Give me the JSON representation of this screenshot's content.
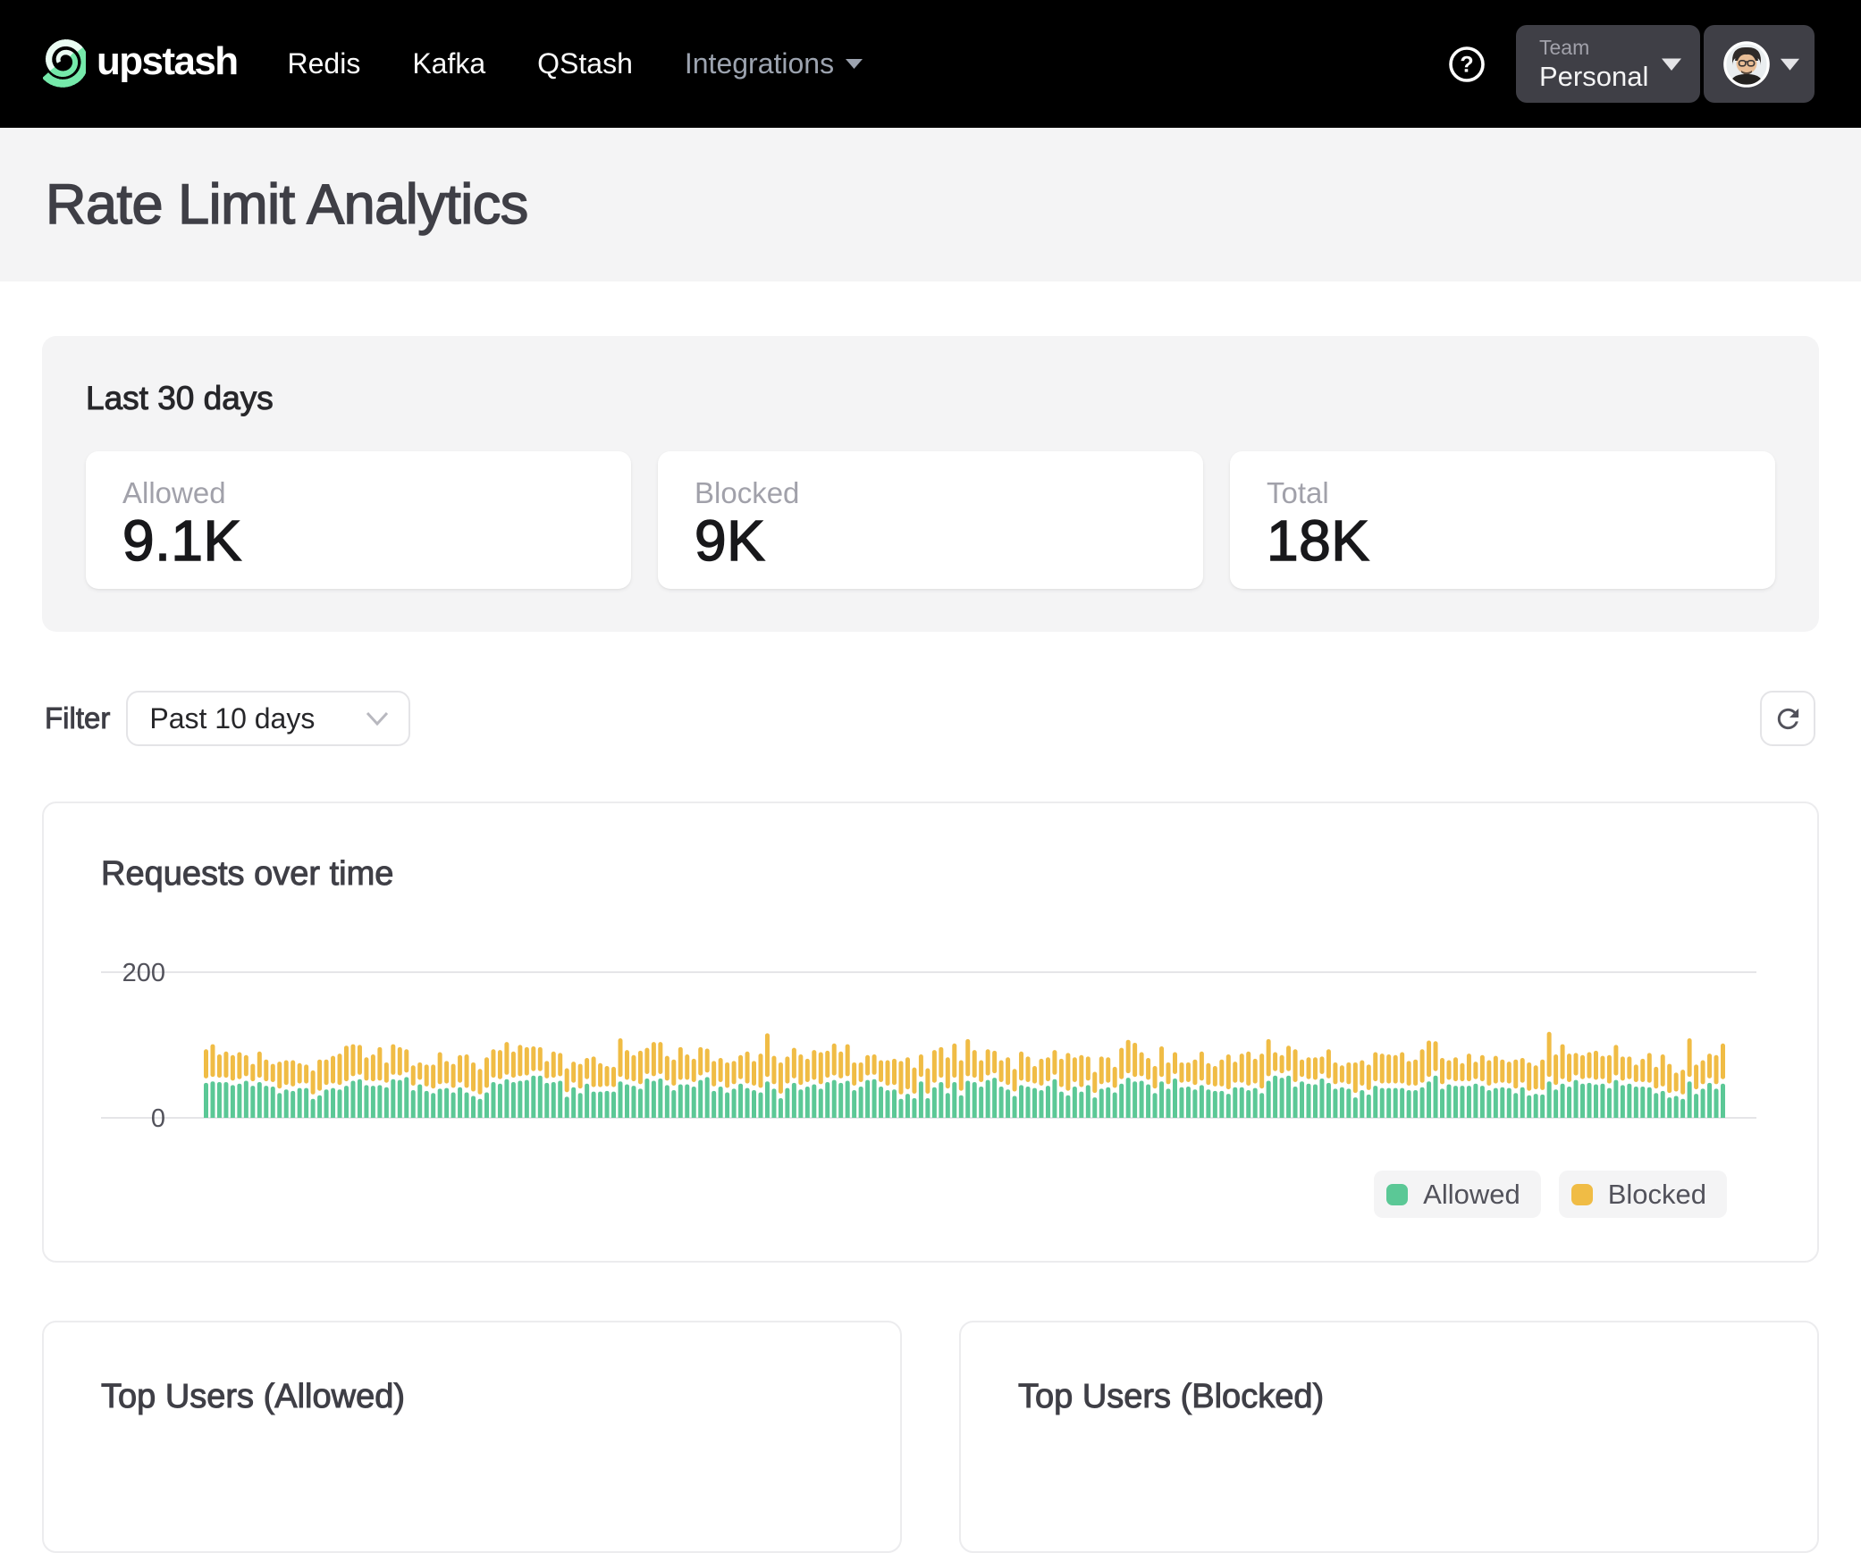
{
  "nav": {
    "brand": "upstash",
    "links": [
      {
        "label": "Redis"
      },
      {
        "label": "Kafka"
      },
      {
        "label": "QStash"
      }
    ],
    "integrations_label": "Integrations",
    "team_switcher": {
      "label": "Team",
      "value": "Personal"
    }
  },
  "page": {
    "title": "Rate Limit Analytics"
  },
  "summary": {
    "title": "Last 30 days",
    "stats": [
      {
        "label": "Allowed",
        "value": "9.1K"
      },
      {
        "label": "Blocked",
        "value": "9K"
      },
      {
        "label": "Total",
        "value": "18K"
      }
    ]
  },
  "filter": {
    "label": "Filter",
    "value": "Past 10 days"
  },
  "chart_card": {
    "title": "Requests over time"
  },
  "chart_data": {
    "type": "bar",
    "stacked": true,
    "title": "Requests over time",
    "xlabel": "",
    "ylabel": "",
    "ylim": [
      0,
      200
    ],
    "yticks": [
      0,
      200
    ],
    "grid": true,
    "legend_position": "bottom-right",
    "legend": [
      "Allowed",
      "Blocked"
    ],
    "colors": {
      "Allowed": "#5bc896",
      "Blocked": "#f0bc45"
    },
    "series": [
      {
        "name": "Allowed",
        "values": [
          48,
          50,
          49,
          49,
          45,
          47,
          51,
          44,
          49,
          44,
          43,
          34,
          39,
          37,
          41,
          41,
          26,
          31,
          39,
          41,
          39,
          44,
          51,
          53,
          45,
          44,
          45,
          42,
          53,
          52,
          56,
          38,
          46,
          37,
          34,
          40,
          41,
          35,
          42,
          35,
          30,
          26,
          35,
          49,
          47,
          53,
          49,
          51,
          52,
          58,
          58,
          48,
          49,
          51,
          29,
          42,
          34,
          47,
          36,
          36,
          37,
          36,
          50,
          46,
          44,
          40,
          54,
          51,
          54,
          45,
          38,
          46,
          46,
          43,
          52,
          56,
          37,
          43,
          35,
          40,
          47,
          41,
          38,
          35,
          50,
          40,
          27,
          41,
          48,
          39,
          43,
          46,
          40,
          49,
          52,
          48,
          51,
          38,
          43,
          52,
          53,
          43,
          38,
          39,
          26,
          33,
          27,
          50,
          27,
          42,
          49,
          34,
          49,
          31,
          51,
          49,
          43,
          52,
          55,
          43,
          39,
          30,
          45,
          43,
          41,
          38,
          44,
          53,
          36,
          31,
          43,
          36,
          45,
          28,
          40,
          42,
          35,
          47,
          55,
          50,
          51,
          46,
          34,
          50,
          40,
          54,
          42,
          43,
          39,
          45,
          39,
          37,
          37,
          33,
          42,
          42,
          38,
          41,
          34,
          51,
          58,
          55,
          58,
          43,
          50,
          47,
          46,
          54,
          48,
          40,
          42,
          40,
          28,
          38,
          32,
          44,
          41,
          41,
          41,
          41,
          38,
          38,
          42,
          50,
          58,
          40,
          46,
          44,
          44,
          44,
          47,
          44,
          38,
          41,
          42,
          41,
          34,
          42,
          31,
          33,
          32,
          50,
          39,
          47,
          43,
          52,
          47,
          48,
          46,
          47,
          41,
          52,
          45,
          47,
          43,
          43,
          42,
          34,
          37,
          28,
          30,
          26,
          50,
          33,
          40,
          48,
          40,
          47
        ]
      },
      {
        "name": "Blocked",
        "values": [
          40,
          45,
          32,
          36,
          35,
          37,
          29,
          24,
          36,
          30,
          25,
          37,
          34,
          36,
          28,
          26,
          33,
          43,
          35,
          38,
          43,
          49,
          44,
          41,
          32,
          37,
          46,
          28,
          42,
          39,
          32,
          28,
          24,
          30,
          33,
          44,
          31,
          33,
          38,
          46,
          40,
          35,
          42,
          39,
          40,
          45,
          36,
          43,
          39,
          34,
          33,
          24,
          36,
          32,
          33,
          29,
          34,
          29,
          42,
          33,
          28,
          28,
          53,
          41,
          36,
          46,
          36,
          47,
          44,
          34,
          36,
          45,
          35,
          32,
          39,
          33,
          35,
          33,
          35,
          32,
          33,
          44,
          34,
          47,
          60,
          39,
          43,
          37,
          42,
          42,
          32,
          41,
          44,
          37,
          44,
          37,
          44,
          32,
          27,
          28,
          28,
          30,
          35,
          36,
          46,
          44,
          36,
          31,
          35,
          45,
          42,
          43,
          47,
          42,
          51,
          38,
          30,
          36,
          31,
          30,
          38,
          31,
          40,
          35,
          24,
          37,
          33,
          34,
          39,
          52,
          34,
          44,
          33,
          29,
          38,
          35,
          29,
          43,
          46,
          47,
          33,
          30,
          31,
          42,
          30,
          30,
          28,
          27,
          35,
          40,
          30,
          28,
          37,
          48,
          29,
          40,
          47,
          34,
          48,
          51,
          26,
          25,
          35,
          45,
          24,
          30,
          31,
          24,
          40,
          30,
          24,
          30,
          42,
          35,
          35,
          40,
          41,
          40,
          39,
          43,
          34,
          36,
          46,
          50,
          41,
          36,
          27,
          33,
          25,
          38,
          24,
          36,
          35,
          38,
          32,
          30,
          40,
          34,
          39,
          33,
          42,
          62,
          42,
          48,
          39,
          31,
          33,
          36,
          40,
          32,
          39,
          42,
          33,
          31,
          24,
          32,
          41,
          30,
          44,
          40,
          26,
          34,
          53,
          34,
          33,
          34,
          40,
          49
        ]
      }
    ]
  },
  "top_users": [
    {
      "title": "Top Users (Allowed)"
    },
    {
      "title": "Top Users (Blocked)"
    }
  ],
  "icons": {
    "upstash-logo-icon": "green spiral",
    "help-icon": "?",
    "caret-down-icon": "▾",
    "chevron-down-icon": "⌄",
    "refresh-icon": "↻",
    "avatar": "user photo"
  },
  "colors": {
    "accent_green": "#5bc896",
    "accent_amber": "#f0bc45",
    "nav_bg": "#000000",
    "band_bg": "#f4f4f5"
  }
}
